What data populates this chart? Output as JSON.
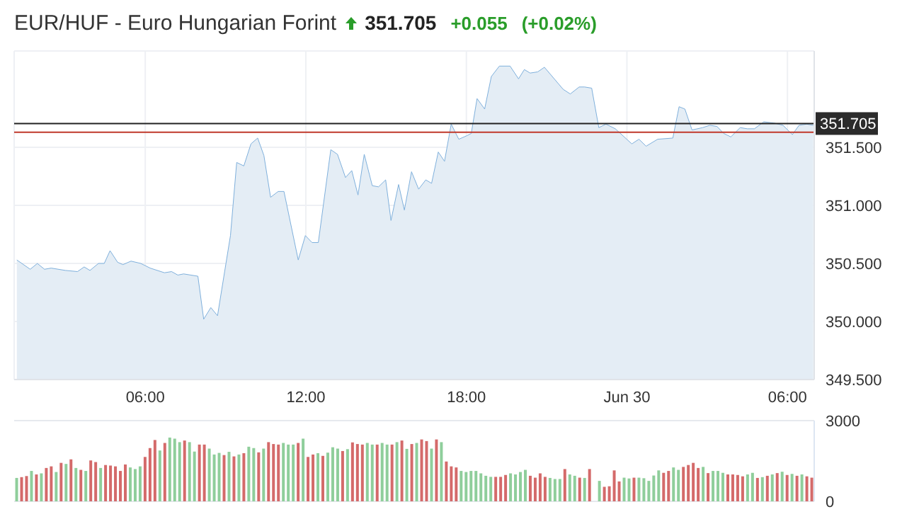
{
  "chart_data": [
    {
      "type": "area",
      "title": "EUR/HUF - Euro Hungarian Forint",
      "annotations": [
        "351.705",
        "+0.055",
        "(+0.02%)"
      ],
      "x": [
        "--06-29T01:12",
        "--06-29T01:42",
        "--06-29T01:58",
        "--06-29T02:14",
        "--06-29T02:29",
        "--06-29T03:01",
        "--06-29T03:28",
        "--06-29T03:43",
        "--06-29T03:56",
        "--06-29T04:15",
        "--06-29T04:28",
        "--06-29T04:41",
        "--06-29T04:58",
        "--06-29T05:10",
        "--06-29T05:28",
        "--06-29T05:50",
        "--06-29T06:11",
        "--06-29T06:43",
        "--06-29T06:59",
        "--06-29T07:13",
        "--06-29T07:26",
        "--06-29T07:58",
        "--06-29T08:11",
        "--06-29T08:27",
        "--06-29T08:42",
        "--06-29T09:11",
        "--06-29T09:25",
        "--06-29T09:41",
        "--06-29T09:57",
        "--06-29T10:12",
        "--06-29T10:26",
        "--06-29T10:41",
        "--06-29T10:58",
        "--06-29T11:11",
        "--06-29T11:43",
        "--06-29T11:59",
        "--06-29T12:14",
        "--06-29T12:28",
        "--06-29T12:56",
        "--06-29T13:11",
        "--06-29T13:29",
        "--06-29T13:43",
        "--06-29T13:57",
        "--06-29T14:11",
        "--06-29T14:29",
        "--06-29T14:43",
        "--06-29T14:59",
        "--06-29T15:11",
        "--06-29T15:28",
        "--06-29T15:41",
        "--06-29T15:57",
        "--06-29T16:13",
        "--06-29T16:29",
        "--06-29T16:42",
        "--06-29T16:57",
        "--06-29T17:11",
        "--06-29T17:26",
        "--06-29T17:43",
        "--06-29T18:01",
        "--06-29T18:11",
        "--06-29T18:24",
        "--06-29T18:41",
        "--06-29T18:56",
        "--06-29T19:14",
        "--06-29T19:38",
        "--06-29T19:57",
        "--06-29T20:10",
        "--06-29T20:23",
        "--06-29T20:40",
        "--06-29T20:55",
        "--06-29T21:37",
        "--06-29T21:53",
        "--06-29T22:13",
        "--06-29T22:25",
        "--06-29T22:41",
        "--06-29T22:57",
        "--06-29T23:13",
        "--06-29T23:34",
        "--06-30T00:11",
        "--06-30T00:27",
        "--06-30T00:43",
        "--06-30T01:09",
        "--06-30T01:43",
        "--06-30T01:57",
        "--06-30T02:10",
        "--06-30T02:26",
        "--06-30T02:50",
        "--06-30T03:06",
        "--06-30T03:22",
        "--06-30T03:37",
        "--06-30T03:53",
        "--06-30T04:14",
        "--06-30T04:30",
        "--06-30T04:46",
        "--06-30T05:07",
        "--06-30T05:29",
        "--06-30T05:50",
        "--06-30T06:11",
        "--06-30T06:26",
        "--06-30T06:43",
        "--06-30T06:58"
      ],
      "series": [
        {
          "color": "#7fb0dc",
          "values": [
            350.53,
            350.45,
            350.5,
            350.45,
            350.46,
            350.44,
            350.43,
            350.47,
            350.44,
            350.5,
            350.5,
            350.61,
            350.51,
            350.49,
            350.52,
            350.5,
            350.46,
            350.42,
            350.43,
            350.4,
            350.41,
            350.39,
            350.02,
            350.12,
            350.05,
            350.74,
            351.37,
            351.34,
            351.53,
            351.58,
            351.43,
            351.07,
            351.12,
            351.12,
            350.53,
            350.74,
            350.68,
            350.68,
            351.48,
            351.44,
            351.24,
            351.3,
            351.09,
            351.44,
            351.17,
            351.16,
            351.22,
            350.87,
            351.18,
            350.96,
            351.29,
            351.14,
            351.22,
            351.19,
            351.46,
            351.38,
            351.7,
            351.57,
            351.6,
            351.62,
            351.92,
            351.83,
            352.11,
            352.2,
            352.2,
            352.09,
            352.17,
            352.14,
            352.15,
            352.19,
            352,
            351.96,
            352.02,
            352.02,
            352.01,
            351.67,
            351.7,
            351.66,
            351.53,
            351.57,
            351.51,
            351.57,
            351.58,
            351.85,
            351.83,
            351.65,
            351.67,
            351.69,
            351.68,
            351.62,
            351.59,
            351.67,
            351.66,
            351.66,
            351.72,
            351.71,
            351.69,
            351.61,
            351.69,
            351.7,
            351.69
          ]
        }
      ],
      "xlim": [
        "--06-29T01:06",
        "--06-30T07:00"
      ],
      "xticks": [
        {
          "value": "--06-29T06:00",
          "label": "06:00"
        },
        {
          "value": "--06-29T12:00",
          "label": "12:00"
        },
        {
          "value": "--06-29T18:00",
          "label": "18:00"
        },
        {
          "value": "--06-30T00:00",
          "label": "Jun 30"
        },
        {
          "value": "--06-30T06:00",
          "label": "06:00"
        }
      ],
      "ylim": [
        349.5,
        352.33
      ],
      "yticks": [
        {
          "value": 349.5,
          "label": "349.500"
        },
        {
          "value": 350,
          "label": "350.000"
        },
        {
          "value": 350.5,
          "label": "350.500"
        },
        {
          "value": 351,
          "label": "351.000"
        },
        {
          "value": 351.5,
          "label": "351.500"
        }
      ],
      "ref_lines": [
        {
          "axis": "y",
          "value": 351.705,
          "label": "351.705",
          "color": "#222222"
        },
        {
          "axis": "y",
          "value": 351.63,
          "label": null,
          "color": "#c0392b"
        }
      ],
      "grid": true
    },
    {
      "type": "bar",
      "categories": [
        null,
        null,
        null,
        null,
        null,
        null,
        null,
        null,
        null,
        null,
        null,
        null,
        null,
        null,
        null,
        null,
        null,
        null,
        null,
        null,
        null,
        null,
        null,
        null,
        null,
        null,
        null,
        null,
        null,
        null,
        null,
        null,
        null,
        null,
        null,
        null,
        null,
        null,
        null,
        null,
        null,
        null,
        null,
        null,
        null,
        null,
        null,
        null,
        null,
        null,
        null,
        null,
        null,
        null,
        null,
        null,
        null,
        null,
        null,
        null,
        null,
        null,
        null,
        null,
        null,
        null,
        null,
        null,
        null,
        null,
        null,
        null,
        null,
        null,
        null,
        null,
        null,
        null,
        null,
        null,
        null,
        null,
        null,
        null,
        null,
        null,
        null,
        null,
        null,
        null,
        null,
        null,
        null,
        null,
        null,
        null,
        null,
        null,
        null,
        null,
        null,
        null,
        null,
        null,
        null,
        null,
        null,
        null,
        null,
        null,
        null,
        null,
        null,
        null,
        null,
        null,
        null,
        null,
        null,
        null,
        null,
        null,
        null,
        null,
        null,
        null,
        null,
        null,
        null,
        null,
        null,
        null,
        null,
        null,
        null,
        null,
        null,
        null,
        null,
        null,
        null,
        null,
        null,
        null,
        null,
        null,
        null,
        null,
        null,
        null,
        null,
        null,
        null,
        null,
        null,
        null,
        null,
        null,
        null,
        null,
        null,
        null
      ],
      "values": [
        870,
        900,
        940,
        1130,
        1000,
        1040,
        1240,
        1300,
        1090,
        1430,
        1390,
        1560,
        1240,
        1170,
        1130,
        1520,
        1460,
        1240,
        1350,
        1330,
        1300,
        1130,
        1370,
        1260,
        1200,
        1300,
        1650,
        1980,
        2280,
        1890,
        2170,
        2370,
        2330,
        2200,
        2260,
        2200,
        1850,
        2110,
        2110,
        1960,
        1740,
        1800,
        1720,
        1840,
        1670,
        1740,
        1790,
        2030,
        1980,
        1820,
        1960,
        2200,
        2130,
        2110,
        2170,
        2110,
        2110,
        2170,
        2330,
        1650,
        1740,
        1790,
        1690,
        1810,
        2010,
        1960,
        1870,
        1940,
        2190,
        2130,
        2110,
        2170,
        2110,
        2110,
        2170,
        2110,
        2110,
        2200,
        2260,
        1950,
        2130,
        2170,
        2300,
        2240,
        1960,
        2300,
        2200,
        1480,
        1300,
        1260,
        1130,
        1090,
        1130,
        1130,
        1040,
        950,
        910,
        910,
        910,
        980,
        1040,
        1000,
        1090,
        1170,
        950,
        880,
        1040,
        910,
        870,
        830,
        830,
        1200,
        1000,
        950,
        880,
        870,
        1200,
        null,
        760,
        540,
        560,
        1150,
        740,
        880,
        850,
        880,
        880,
        860,
        760,
        960,
        1150,
        1060,
        1130,
        1260,
        1170,
        1280,
        1350,
        1430,
        1240,
        1280,
        1050,
        1130,
        1130,
        1060,
        1000,
        1000,
        980,
        930,
        1000,
        1060,
        870,
        900,
        950,
        1000,
        1050,
        1100,
        980,
        1020,
        950,
        1000,
        930,
        880
      ],
      "colors": [
        "#8fce9b",
        "#d46a6a",
        "#d46a6a",
        "#8fce9b",
        "#d46a6a",
        "#8fce9b",
        "#d46a6a",
        "#d46a6a",
        "#8fce9b",
        "#d46a6a",
        "#8fce9b",
        "#d46a6a",
        "#8fce9b",
        "#d46a6a",
        "#8fce9b",
        "#d46a6a",
        "#d46a6a",
        "#8fce9b",
        "#d46a6a",
        "#d46a6a",
        "#d46a6a",
        "#d46a6a",
        "#d46a6a",
        "#8fce9b",
        "#8fce9b",
        "#8fce9b",
        "#d46a6a",
        "#d46a6a",
        "#d46a6a",
        "#8fce9b",
        "#d46a6a",
        "#8fce9b",
        "#8fce9b",
        "#8fce9b",
        "#d46a6a",
        "#8fce9b",
        "#8fce9b",
        "#d46a6a",
        "#d46a6a",
        "#8fce9b",
        "#8fce9b",
        "#8fce9b",
        "#d46a6a",
        "#8fce9b",
        "#d46a6a",
        "#8fce9b",
        "#d46a6a",
        "#8fce9b",
        "#8fce9b",
        "#d46a6a",
        "#8fce9b",
        "#d46a6a",
        "#d46a6a",
        "#d46a6a",
        "#8fce9b",
        "#8fce9b",
        "#8fce9b",
        "#d46a6a",
        "#8fce9b",
        "#d46a6a",
        "#d46a6a",
        "#8fce9b",
        "#d46a6a",
        "#8fce9b",
        "#8fce9b",
        "#8fce9b",
        "#d46a6a",
        "#8fce9b",
        "#d46a6a",
        "#d46a6a",
        "#d46a6a",
        "#8fce9b",
        "#8fce9b",
        "#d46a6a",
        "#8fce9b",
        "#8fce9b",
        "#d46a6a",
        "#8fce9b",
        "#d46a6a",
        "#8fce9b",
        "#d46a6a",
        "#8fce9b",
        "#d46a6a",
        "#d46a6a",
        "#8fce9b",
        "#d46a6a",
        "#8fce9b",
        "#d46a6a",
        "#d46a6a",
        "#d46a6a",
        "#8fce9b",
        "#8fce9b",
        "#8fce9b",
        "#8fce9b",
        "#8fce9b",
        "#8fce9b",
        "#8fce9b",
        "#d46a6a",
        "#d46a6a",
        "#d46a6a",
        "#8fce9b",
        "#8fce9b",
        "#8fce9b",
        "#8fce9b",
        "#d46a6a",
        "#d46a6a",
        "#d46a6a",
        "#d46a6a",
        "#8fce9b",
        "#8fce9b",
        "#8fce9b",
        "#d46a6a",
        "#8fce9b",
        "#8fce9b",
        "#d46a6a",
        "#8fce9b",
        "#d46a6a",
        "#8fce9b",
        "#8fce9b",
        "#d46a6a",
        "#d46a6a",
        "#d46a6a",
        "#d46a6a",
        "#8fce9b",
        "#8fce9b",
        "#d46a6a",
        "#8fce9b",
        "#8fce9b",
        "#8fce9b",
        "#8fce9b",
        "#8fce9b",
        "#d46a6a",
        "#d46a6a",
        "#8fce9b",
        "#8fce9b",
        "#d46a6a",
        "#d46a6a",
        "#d46a6a",
        "#d46a6a",
        "#8fce9b",
        "#d46a6a",
        "#8fce9b",
        "#8fce9b",
        "#8fce9b",
        "#d46a6a",
        "#d46a6a",
        "#d46a6a",
        "#d46a6a",
        "#8fce9b",
        "#8fce9b",
        "#d46a6a",
        "#8fce9b",
        "#d46a6a",
        "#8fce9b",
        "#d46a6a",
        "#8fce9b",
        "#d46a6a",
        "#8fce9b",
        "#d46a6a",
        "#8fce9b",
        "#d46a6a",
        "#d46a6a"
      ],
      "ylim": [
        0,
        3000
      ],
      "yticks": [
        0,
        3000
      ],
      "tick_labels": "y",
      "grid": "y"
    }
  ]
}
